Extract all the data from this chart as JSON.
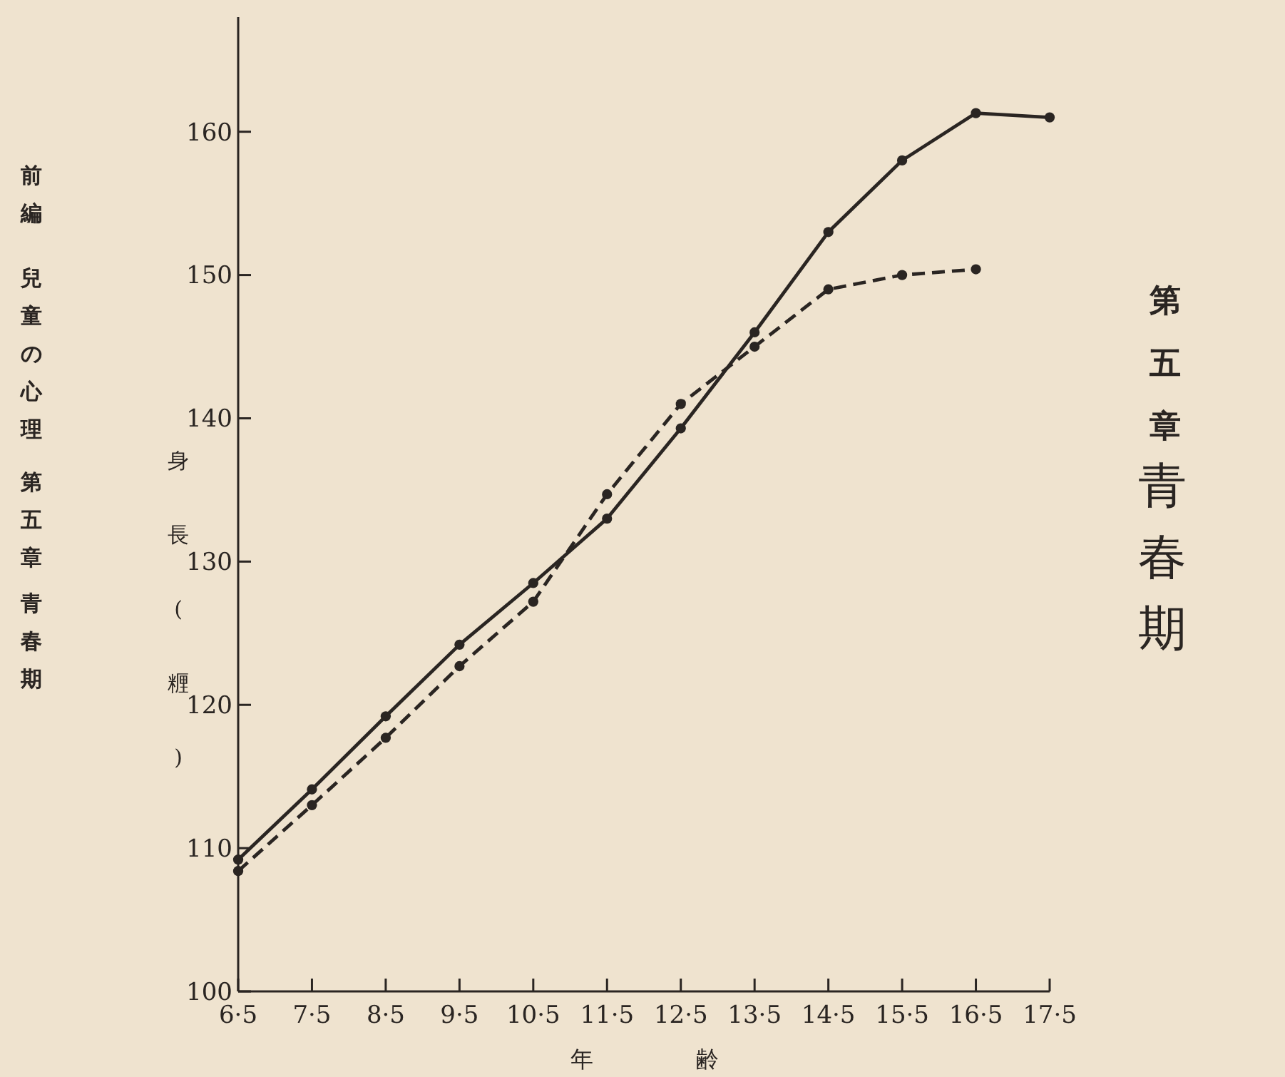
{
  "chart_data": {
    "type": "line",
    "xlabel": "年齢",
    "ylabel": "身長(糎)",
    "categories": [
      "6·5",
      "7·5",
      "8·5",
      "9·5",
      "10·5",
      "11·5",
      "12·5",
      "13·5",
      "14·5",
      "15·5",
      "16·5",
      "17·5"
    ],
    "series": [
      {
        "color": "#2a2522",
        "line_style": "solid",
        "values": [
          109.2,
          114.1,
          119.2,
          124.2,
          128.5,
          133.0,
          139.3,
          146.0,
          153.0,
          158.0,
          161.3,
          161.0
        ]
      },
      {
        "color": "#2a2522",
        "line_style": "dashed",
        "values": [
          108.4,
          113.0,
          117.7,
          122.7,
          127.2,
          134.7,
          141.0,
          145.0,
          149.0,
          150.0,
          150.4,
          null
        ]
      }
    ],
    "ylim": [
      100,
      168
    ],
    "yticks": [
      100,
      110,
      120,
      130,
      140,
      150,
      160
    ],
    "marker": "circle",
    "grid": false,
    "annotations": [
      "前編",
      "兒童の心理",
      "第五章",
      "青春期",
      "第五章",
      "青春期"
    ]
  }
}
